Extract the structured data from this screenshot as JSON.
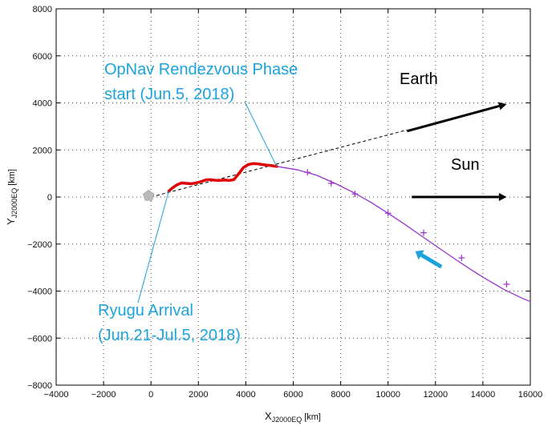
{
  "chart_data": {
    "type": "line",
    "xlabel_main": "X",
    "xlabel_sub": "J2000EQ",
    "xlabel_unit": "[km]",
    "ylabel_main": "Y",
    "ylabel_sub": "J2000EQ",
    "ylabel_unit": "[km]",
    "xlim": [
      -4000,
      16000
    ],
    "ylim": [
      -8000,
      8000
    ],
    "xticks": [
      -4000,
      -2000,
      0,
      2000,
      4000,
      6000,
      8000,
      10000,
      12000,
      14000,
      16000
    ],
    "yticks": [
      -8000,
      -6000,
      -4000,
      -2000,
      0,
      2000,
      4000,
      6000,
      8000
    ],
    "xtick_labels": [
      "−4000",
      "−2000",
      "0",
      "2000",
      "4000",
      "6000",
      "8000",
      "10000",
      "12000",
      "14000",
      "16000"
    ],
    "ytick_labels": [
      "−8000",
      "−6000",
      "−4000",
      "−2000",
      "0",
      "2000",
      "4000",
      "6000",
      "8000"
    ],
    "grid": true,
    "colors": {
      "approach": "#9933cc",
      "arrival": "#e00000",
      "annotation": "#1aa3dc",
      "dashed": "#000000",
      "arrow": "#000000",
      "ryugu_marker": "#bbbbbb"
    },
    "series": [
      {
        "key": "approach",
        "x": [
          5300,
          6200,
          7000,
          7800,
          8600,
          9300,
          10000,
          10700,
          11400,
          12100,
          12800,
          13500,
          14200,
          14900,
          15600,
          16000
        ],
        "y": [
          1300,
          1150,
          920,
          560,
          160,
          -240,
          -690,
          -1160,
          -1650,
          -2140,
          -2620,
          -3090,
          -3530,
          -3940,
          -4280,
          -4450
        ]
      },
      {
        "key": "arrival",
        "x": [
          750,
          900,
          1100,
          1300,
          1500,
          1700,
          1900,
          2100,
          2300,
          2500,
          2700,
          2900,
          3100,
          3300,
          3500,
          3700,
          3900,
          4100,
          4300,
          4500,
          4700,
          4900,
          5100,
          5300
        ],
        "y": [
          250,
          380,
          520,
          600,
          580,
          560,
          600,
          650,
          720,
          740,
          710,
          700,
          720,
          700,
          740,
          990,
          1250,
          1380,
          1420,
          1410,
          1380,
          1350,
          1330,
          1300
        ]
      }
    ],
    "approach_markers": {
      "x": [
        6600,
        7600,
        8600,
        10000,
        11500,
        13100,
        15000
      ],
      "y": [
        1050,
        580,
        130,
        -690,
        -1520,
        -2590,
        -3710
      ]
    },
    "dashed_line": {
      "x": [
        0,
        10800
      ],
      "y": [
        0,
        2850
      ]
    },
    "ryugu_marker": {
      "x": -100,
      "y": 50
    },
    "arrows": [
      {
        "key": "earth",
        "x": [
          10800,
          15000
        ],
        "y": [
          2800,
          3950
        ]
      },
      {
        "key": "sun",
        "x": [
          11000,
          15000
        ],
        "y": [
          0,
          0
        ]
      },
      {
        "key": "motion",
        "x": [
          12250,
          11150
        ],
        "y": [
          -2970,
          -2310
        ]
      }
    ],
    "callouts": [
      {
        "key": "opnav",
        "text_x": 3950,
        "text_y": 4060,
        "point_x": 5300,
        "point_y": 1300
      },
      {
        "key": "arrival",
        "text_x": -550,
        "text_y": -4500,
        "point_x": 750,
        "point_y": 250
      }
    ],
    "annotations": {
      "opnav_line1": "OpNav Rendezvous Phase",
      "opnav_line2": "start (Jun.5, 2018)",
      "arrival_line1": "Ryugu Arrival",
      "arrival_line2": "(Jun.21-Jul.5, 2018)",
      "earth": "Earth",
      "sun": "Sun"
    }
  }
}
